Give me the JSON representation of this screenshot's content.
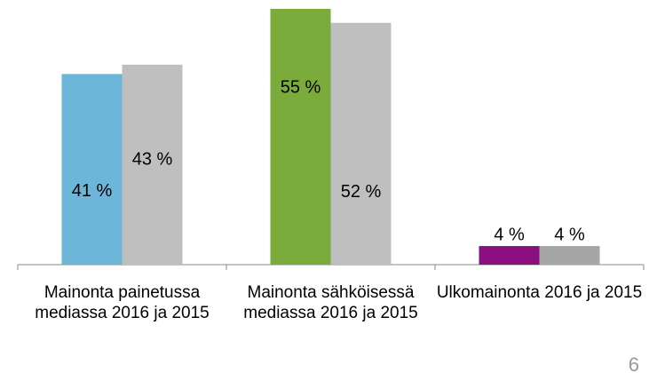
{
  "chart_data": {
    "type": "bar",
    "categories": [
      "Mainonta painetussa mediassa 2016 ja 2015",
      "Mainonta sähköisessä mediassa 2016 ja 2015",
      "Ulkomainonta 2016 ja 2015"
    ],
    "series": [
      {
        "colors": [
          "#6cb6da",
          "#7bab3a",
          "#8c0f80"
        ],
        "values": [
          41,
          55,
          4
        ],
        "value_labels": [
          "41 %",
          "55 %",
          "4 %"
        ]
      },
      {
        "colors": [
          "#bfbfbf",
          "#bfbfbf",
          "#a6a6a6"
        ],
        "values": [
          43,
          52,
          4
        ],
        "value_labels": [
          "43 %",
          "52 %",
          "4 %"
        ]
      }
    ],
    "ylim": [
      0,
      55
    ]
  },
  "page_number": "6"
}
